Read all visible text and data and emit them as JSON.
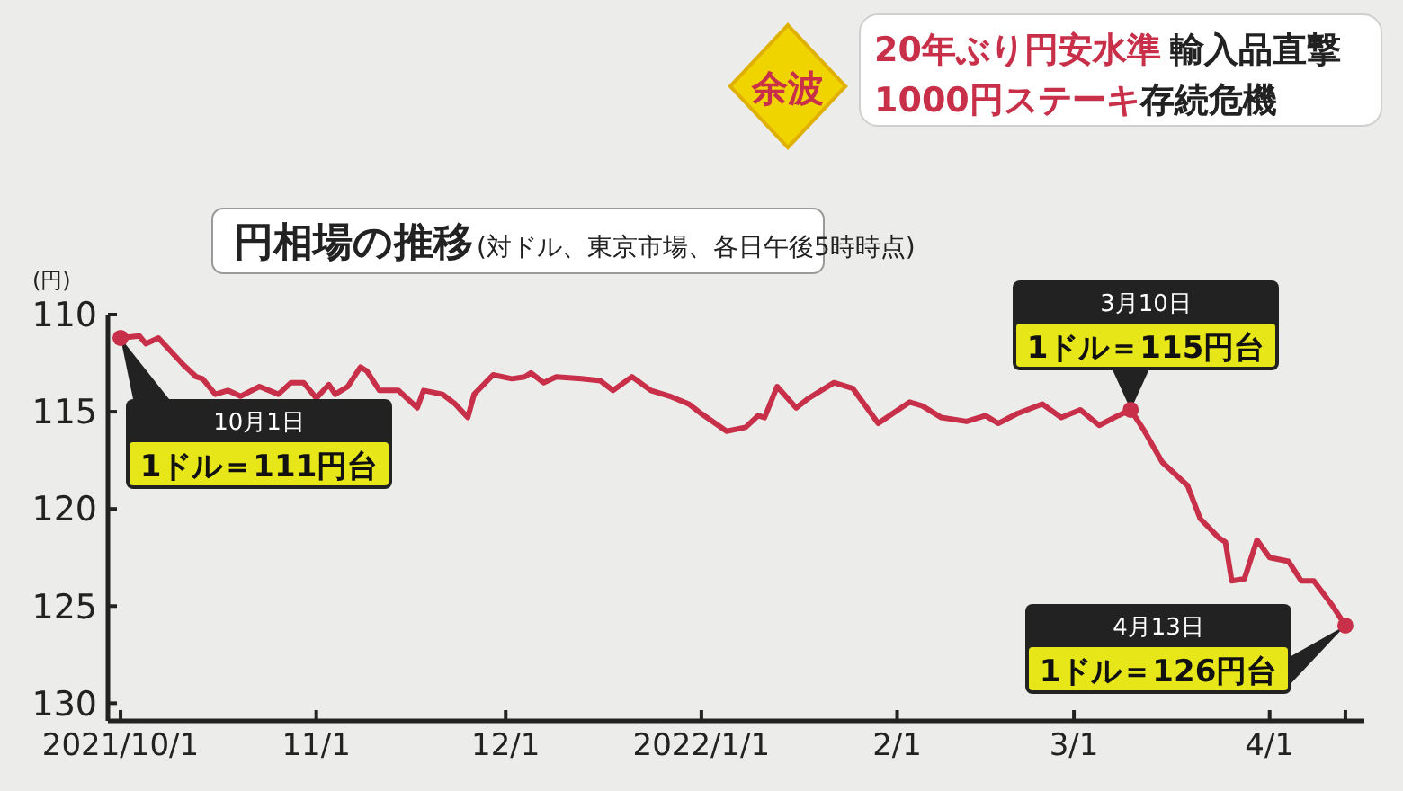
{
  "chart_data": {
    "type": "line",
    "title": "円相場の推移",
    "subtitle": "(対ドル、東京市場、各日午後5時時点)",
    "ylabel": "(円)",
    "annotations": [
      "余波",
      "20年ぶり円安水準",
      "輸入品直撃",
      "1000円ステーキ",
      "存続危機",
      {
        "text": "10月1日\n1ドル＝111円台",
        "x": "2021-10-01",
        "y": 111.2
      },
      {
        "text": "3月10日\n1ドル＝115円台",
        "x": "2022-03-10",
        "y": 114.9
      },
      {
        "text": "4月13日\n1ドル＝126円台",
        "x": "2022-04-13",
        "y": 126.0
      }
    ],
    "xlim": [
      "2021-09-29",
      "2022-04-16"
    ],
    "ylim": [
      131,
      110
    ],
    "xticks": [
      {
        "value": "2021-10-01",
        "label": "2021/10/1"
      },
      {
        "value": "2021-11-01",
        "label": "11/1"
      },
      {
        "value": "2021-12-01",
        "label": "12/1"
      },
      {
        "value": "2022-01-01",
        "label": "2022/1/1"
      },
      {
        "value": "2022-02-01",
        "label": "2/1"
      },
      {
        "value": "2022-03-01",
        "label": "3/1"
      },
      {
        "value": "2022-04-01",
        "label": "4/1"
      },
      {
        "value": "2022-04-13",
        "label": null
      }
    ],
    "yticks": [
      110,
      115,
      120,
      125,
      130
    ],
    "grid": false,
    "marker": "none",
    "line_style": "solid",
    "x": [
      "2021-10-01",
      "2021-10-04",
      "2021-10-05",
      "2021-10-07",
      "2021-10-11",
      "2021-10-13",
      "2021-10-14",
      "2021-10-16",
      "2021-10-18",
      "2021-10-20",
      "2021-10-23",
      "2021-10-26",
      "2021-10-28",
      "2021-10-30",
      "2021-11-01",
      "2021-11-03",
      "2021-11-04",
      "2021-11-06",
      "2021-11-08",
      "2021-11-09",
      "2021-11-11",
      "2021-11-14",
      "2021-11-17",
      "2021-11-18",
      "2021-11-21",
      "2021-11-23",
      "2021-11-25",
      "2021-11-26",
      "2021-11-29",
      "2021-12-02",
      "2021-12-04",
      "2021-12-05",
      "2021-12-07",
      "2021-12-09",
      "2021-12-13",
      "2021-12-16",
      "2021-12-18",
      "2021-12-21",
      "2021-12-24",
      "2021-12-27",
      "2021-12-30",
      "2022-01-01",
      "2022-01-05",
      "2022-01-08",
      "2022-01-10",
      "2022-01-11",
      "2022-01-13",
      "2022-01-16",
      "2022-01-18",
      "2022-01-22",
      "2022-01-25",
      "2022-01-29",
      "2022-02-03",
      "2022-02-05",
      "2022-02-08",
      "2022-02-12",
      "2022-02-15",
      "2022-02-17",
      "2022-02-20",
      "2022-02-24",
      "2022-02-27",
      "2022-03-02",
      "2022-03-05",
      "2022-03-08",
      "2022-03-10",
      "2022-03-12",
      "2022-03-15",
      "2022-03-17",
      "2022-03-19",
      "2022-03-21",
      "2022-03-24",
      "2022-03-25",
      "2022-03-26",
      "2022-03-28",
      "2022-03-30",
      "2022-04-01",
      "2022-04-04",
      "2022-04-06",
      "2022-04-08",
      "2022-04-11",
      "2022-04-13"
    ],
    "series": [
      {
        "color": "#c8304a",
        "values": [
          111.2,
          111.1,
          111.5,
          111.2,
          112.6,
          113.2,
          113.3,
          114.1,
          113.9,
          114.2,
          113.7,
          114.1,
          113.5,
          113.5,
          114.3,
          113.6,
          114.1,
          113.7,
          112.7,
          112.9,
          113.9,
          113.9,
          114.8,
          113.9,
          114.1,
          114.6,
          115.3,
          114.1,
          113.1,
          113.3,
          113.2,
          113.0,
          113.5,
          113.2,
          113.3,
          113.4,
          113.9,
          113.2,
          113.9,
          114.2,
          114.6,
          115.1,
          116.0,
          115.8,
          115.2,
          115.3,
          113.7,
          114.8,
          114.3,
          113.5,
          113.8,
          115.6,
          114.5,
          114.7,
          115.3,
          115.5,
          115.2,
          115.6,
          115.1,
          114.6,
          115.3,
          114.9,
          115.7,
          115.2,
          114.9,
          115.9,
          117.6,
          118.2,
          118.8,
          120.5,
          121.5,
          121.7,
          123.7,
          123.6,
          121.6,
          122.5,
          122.7,
          123.7,
          123.7,
          125.0,
          126.0
        ]
      }
    ]
  }
}
